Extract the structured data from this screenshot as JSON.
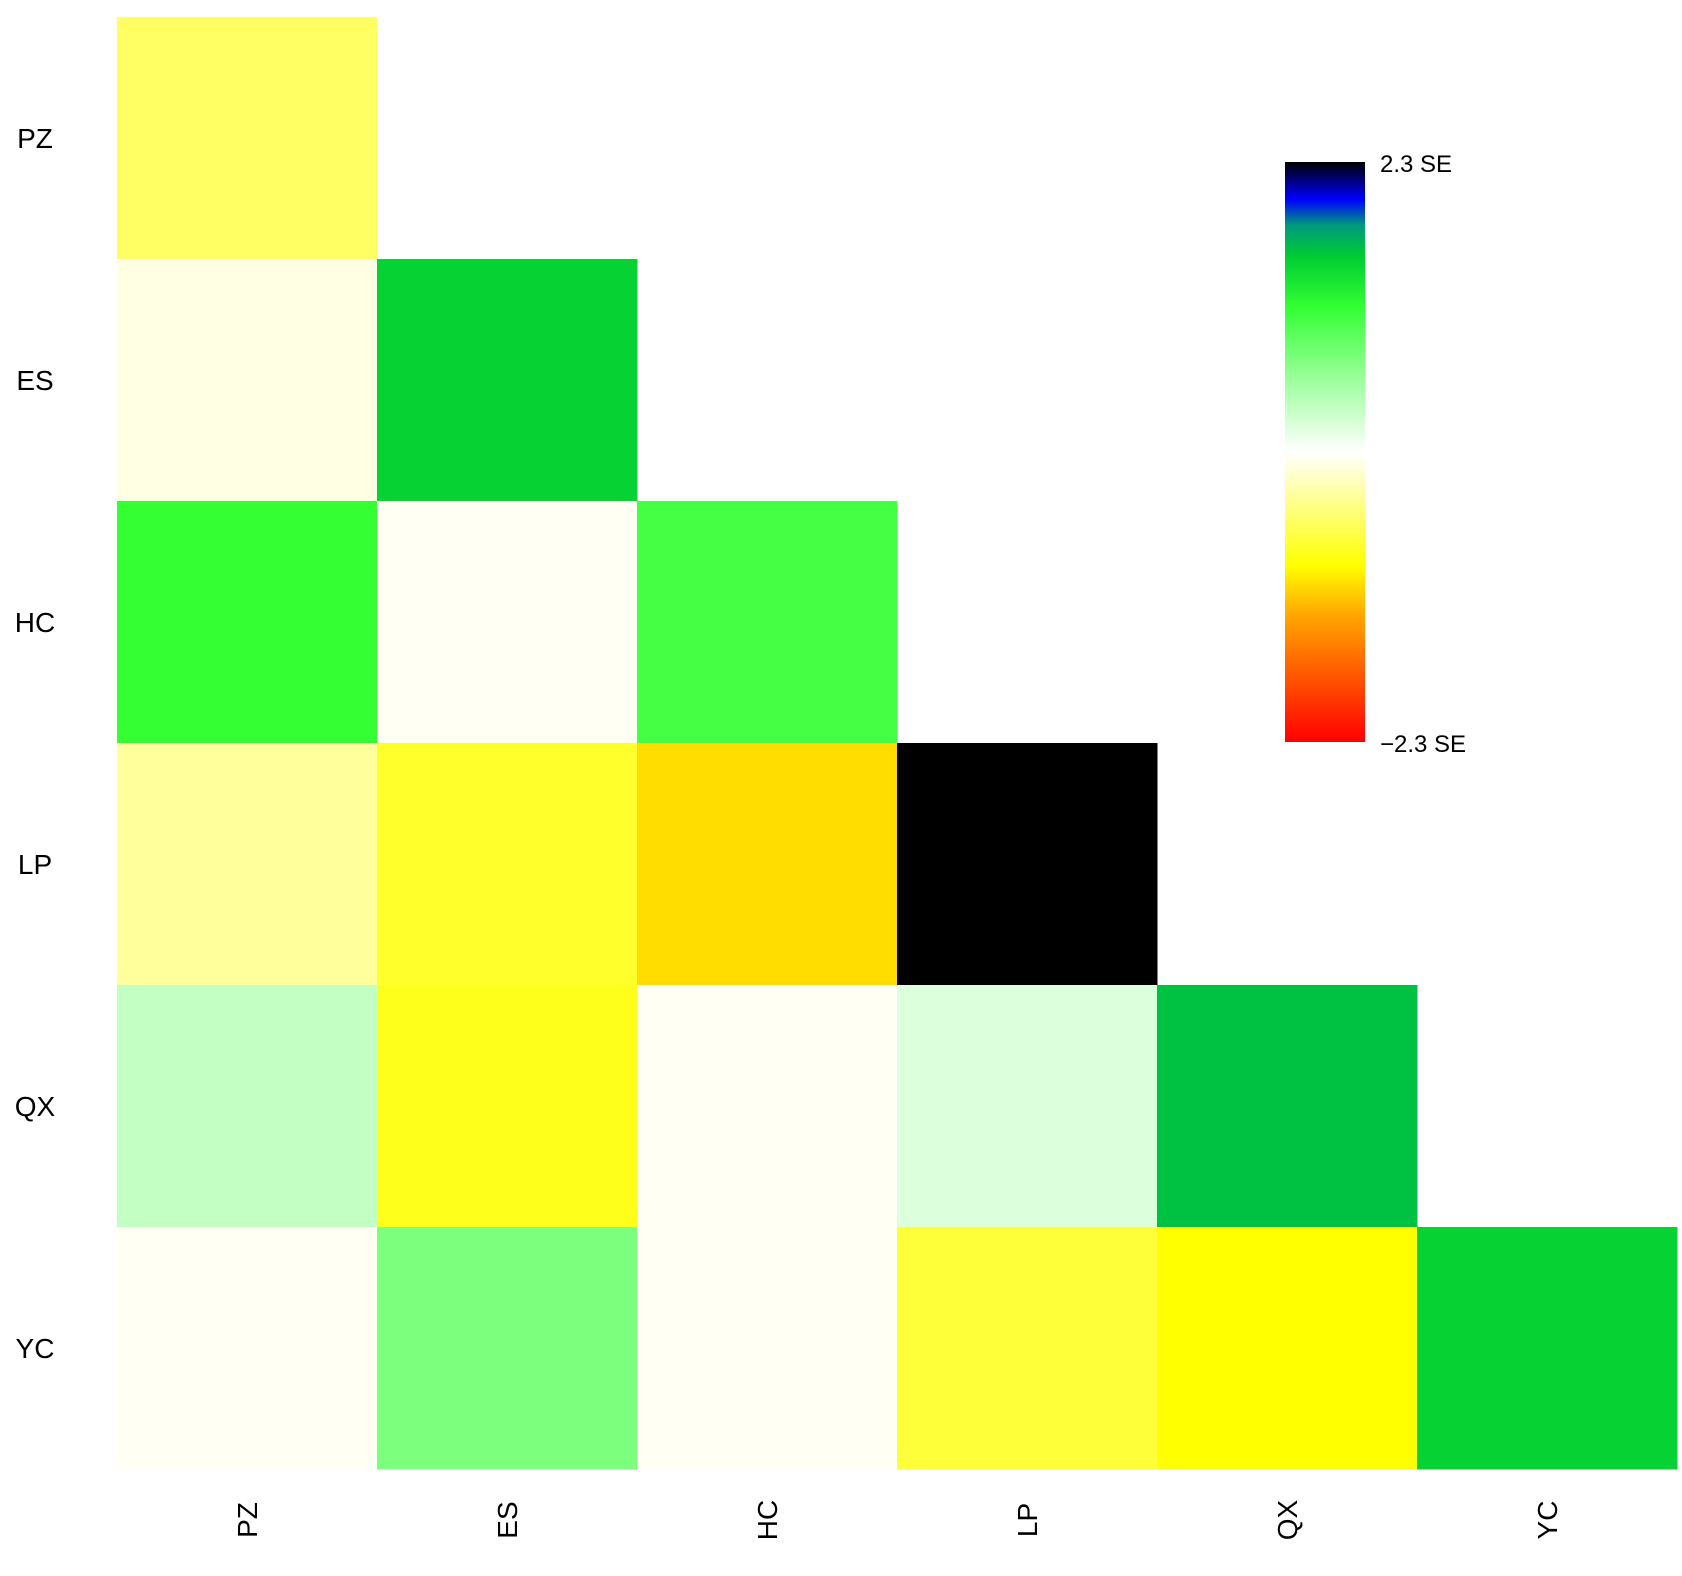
{
  "chart_data": {
    "type": "heatmap",
    "layout": "lower-triangle",
    "rows": [
      "PZ",
      "ES",
      "HC",
      "LP",
      "QX",
      "YC"
    ],
    "columns": [
      "PZ",
      "ES",
      "HC",
      "LP",
      "QX",
      "YC"
    ],
    "values": [
      [
        -0.55,
        null,
        null,
        null,
        null,
        null
      ],
      [
        -0.1,
        1.5,
        null,
        null,
        null,
        null
      ],
      [
        1.15,
        -0.04,
        1.05,
        null,
        null,
        null
      ],
      [
        -0.35,
        -0.75,
        -1.05,
        2.3,
        null,
        null
      ],
      [
        0.35,
        -0.8,
        -0.04,
        0.2,
        1.6,
        null
      ],
      [
        -0.04,
        0.75,
        -0.04,
        -0.7,
        -0.9,
        1.5
      ]
    ],
    "color_scale": {
      "min": -2.3,
      "max": 2.3,
      "stops": [
        {
          "value": -2.3,
          "color": "#ff0000"
        },
        {
          "value": -1.3,
          "color": "#ffa500"
        },
        {
          "value": -0.9,
          "color": "#ffff00"
        },
        {
          "value": 0.0,
          "color": "#ffffff"
        },
        {
          "value": 0.55,
          "color": "#a0ffa0"
        },
        {
          "value": 1.15,
          "color": "#33ff33"
        },
        {
          "value": 1.55,
          "color": "#00cc33"
        },
        {
          "value": 1.8,
          "color": "#00997f"
        },
        {
          "value": 2.0,
          "color": "#0000ff"
        },
        {
          "value": 2.3,
          "color": "#000000"
        }
      ]
    },
    "legend": {
      "position": "top-right",
      "max_label": "2.3 SE",
      "min_label": "−2.3 SE"
    }
  }
}
